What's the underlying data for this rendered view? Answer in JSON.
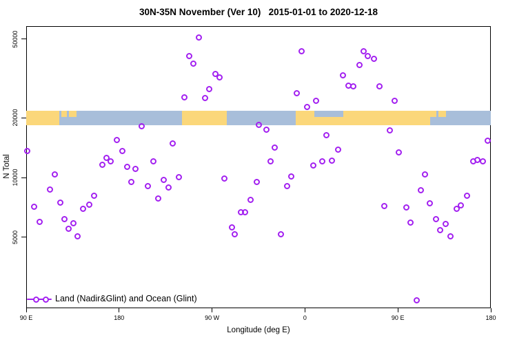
{
  "title": "30N-35N November (Ver 10)   2015-01-01 to 2020-12-18",
  "chart_data": {
    "type": "scatter",
    "title": "30N-35N November (Ver 10)   2015-01-01 to 2020-12-18",
    "xlabel": "Longitude (deg E)",
    "ylabel": "N Total",
    "x_axis": {
      "start_deg": 90,
      "end_deg": 540,
      "note": "longitude axis wraps eastward from 90E through 180, 90W, 0, 90E to 180",
      "tick_positions": [
        90,
        180,
        270,
        360,
        450,
        540
      ],
      "tick_labels": [
        "90 E",
        "180",
        "90 W",
        "0",
        "90 E",
        "180"
      ]
    },
    "y_axis": {
      "scale": "log10",
      "min": 2250,
      "max": 59000,
      "ticks": [
        5000,
        10000,
        20000,
        50000
      ],
      "tick_labels": [
        "5000",
        "10000",
        "20000",
        "50000"
      ]
    },
    "legend": {
      "label": "Land (Nadir&Glint) and Ocean (Glint)",
      "position": "bottom-left"
    },
    "point_style": {
      "shape": "open-circle",
      "color": "#A21FF0"
    },
    "map_band": {
      "center_value": 20000,
      "ocean_color": "#A8BEDA",
      "land_color": "#FBD77A",
      "segments": [
        {
          "from": 90,
          "to": 122,
          "part": "full"
        },
        {
          "from": 124,
          "to": 129.5,
          "part": "top"
        },
        {
          "from": 131.5,
          "to": 138.5,
          "part": "top"
        },
        {
          "from": 241,
          "to": 284,
          "part": "full"
        },
        {
          "from": 351,
          "to": 369,
          "part": "full"
        },
        {
          "from": 369,
          "to": 397,
          "part": "bottom"
        },
        {
          "from": 397,
          "to": 481,
          "part": "full"
        },
        {
          "from": 481.5,
          "to": 487.5,
          "part": "top"
        },
        {
          "from": 489.5,
          "to": 496.5,
          "part": "top"
        }
      ]
    },
    "points": [
      [
        91,
        13600
      ],
      [
        98,
        7100
      ],
      [
        103,
        5960
      ],
      [
        113,
        8660
      ],
      [
        118,
        10400
      ],
      [
        123,
        7450
      ],
      [
        127,
        6160
      ],
      [
        131,
        5500
      ],
      [
        136,
        5860
      ],
      [
        140,
        5040
      ],
      [
        145,
        6940
      ],
      [
        151,
        7280
      ],
      [
        156,
        8070
      ],
      [
        164,
        11600
      ],
      [
        168,
        12600
      ],
      [
        172,
        12100
      ],
      [
        178,
        15400
      ],
      [
        183,
        13600
      ],
      [
        188,
        11300
      ],
      [
        192,
        9530
      ],
      [
        196,
        11070
      ],
      [
        202,
        18100
      ],
      [
        208,
        9020
      ],
      [
        213,
        12100
      ],
      [
        218,
        7810
      ],
      [
        223,
        9690
      ],
      [
        228,
        8880
      ],
      [
        232,
        14800
      ],
      [
        238,
        10080
      ],
      [
        243,
        25400
      ],
      [
        248,
        41000
      ],
      [
        252,
        37500
      ],
      [
        257,
        51000
      ],
      [
        263,
        25100
      ],
      [
        267,
        27900
      ],
      [
        273,
        33300
      ],
      [
        277,
        32000
      ],
      [
        282,
        9920
      ],
      [
        289,
        5590
      ],
      [
        292,
        5160
      ],
      [
        298,
        6660
      ],
      [
        302,
        6660
      ],
      [
        307,
        7690
      ],
      [
        313,
        9530
      ],
      [
        315,
        18500
      ],
      [
        323,
        17470
      ],
      [
        327,
        12110
      ],
      [
        331,
        14200
      ],
      [
        337,
        5160
      ],
      [
        343,
        9020
      ],
      [
        347,
        10160
      ],
      [
        352,
        26640
      ],
      [
        357,
        43300
      ],
      [
        362,
        22720
      ],
      [
        368,
        11500
      ],
      [
        371,
        24410
      ],
      [
        377,
        12110
      ],
      [
        381,
        16390
      ],
      [
        386,
        12200
      ],
      [
        392,
        13860
      ],
      [
        397,
        32770
      ],
      [
        402,
        29080
      ],
      [
        407,
        28840
      ],
      [
        413,
        36940
      ],
      [
        417,
        43300
      ],
      [
        421,
        41000
      ],
      [
        427,
        39680
      ],
      [
        432,
        28850
      ],
      [
        437,
        7160
      ],
      [
        442,
        17330
      ],
      [
        447,
        24400
      ],
      [
        451,
        13430
      ],
      [
        458,
        7050
      ],
      [
        462,
        5910
      ],
      [
        468,
        2400
      ],
      [
        472,
        8600
      ],
      [
        476,
        10400
      ],
      [
        481,
        7400
      ],
      [
        487,
        6150
      ],
      [
        491,
        5420
      ],
      [
        496,
        5820
      ],
      [
        501,
        5040
      ],
      [
        507,
        6940
      ],
      [
        511,
        7220
      ],
      [
        517,
        8070
      ],
      [
        523,
        12100
      ],
      [
        527,
        12300
      ],
      [
        532,
        12100
      ],
      [
        537,
        15380
      ]
    ]
  }
}
